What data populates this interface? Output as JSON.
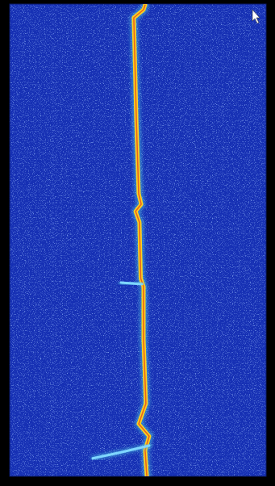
{
  "chart_data": {
    "type": "line",
    "tick_labels": false,
    "grid": false,
    "xlim": [
      0,
      100
    ],
    "ylim": [
      100,
      0
    ],
    "series": [
      {
        "color": "#ffd21e",
        "x": [
          52.8,
          52.2,
          48.4,
          48.7,
          49.4,
          50.3,
          51.3,
          49.1,
          50.6,
          51.1,
          52.2,
          52.2,
          53.1,
          50.3,
          54.4,
          52.8,
          53.5
        ],
        "values": [
          0.2,
          1.2,
          2.9,
          9.4,
          24.8,
          40.2,
          42.4,
          43.9,
          46.2,
          58.1,
          59.8,
          70.9,
          84.6,
          88.9,
          91.5,
          94.5,
          100
        ]
      },
      {
        "color": "#7fd6ff",
        "x": [
          51.6,
          43.4
        ],
        "values": [
          59.3,
          59.0
        ]
      },
      {
        "color": "#7fd6ff",
        "x": [
          54.4,
          43.4,
          32.4
        ],
        "values": [
          93.5,
          94.9,
          96.2
        ]
      }
    ]
  }
}
